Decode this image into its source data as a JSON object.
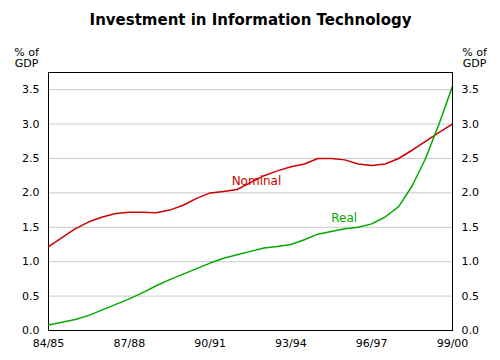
{
  "chart_data": {
    "type": "line",
    "title": "Investment in Information Technology",
    "ylabel": "% of\nGDP",
    "y2label": "% of\nGDP",
    "x": [
      0,
      0.5,
      1,
      1.5,
      2,
      2.5,
      3,
      3.5,
      4,
      4.5,
      5,
      5.5,
      6,
      6.5,
      7,
      7.5,
      8,
      8.5,
      9,
      9.5,
      10,
      10.5,
      11,
      11.5,
      12,
      12.5,
      13,
      13.5,
      14,
      14.5,
      15
    ],
    "series": [
      {
        "name": "Nominal",
        "color": "#cc0000",
        "values": [
          1.22,
          1.35,
          1.48,
          1.58,
          1.65,
          1.7,
          1.72,
          1.72,
          1.71,
          1.75,
          1.82,
          1.92,
          2.0,
          2.02,
          2.05,
          2.15,
          2.25,
          2.32,
          2.38,
          2.42,
          2.5,
          2.5,
          2.48,
          2.42,
          2.4,
          2.42,
          2.5,
          2.62,
          2.75,
          2.88,
          3.0
        ]
      },
      {
        "name": "Real",
        "color": "#00aa00",
        "values": [
          0.08,
          0.12,
          0.16,
          0.22,
          0.3,
          0.38,
          0.46,
          0.55,
          0.65,
          0.74,
          0.82,
          0.9,
          0.98,
          1.05,
          1.1,
          1.15,
          1.2,
          1.22,
          1.25,
          1.32,
          1.4,
          1.44,
          1.48,
          1.5,
          1.55,
          1.65,
          1.8,
          2.1,
          2.5,
          3.0,
          3.55
        ]
      }
    ],
    "xlim": [
      0,
      15
    ],
    "xticks": [
      {
        "value": 0,
        "label": "84/85"
      },
      {
        "value": 3,
        "label": "87/88"
      },
      {
        "value": 6,
        "label": "90/91"
      },
      {
        "value": 9,
        "label": "93/94"
      },
      {
        "value": 12,
        "label": "96/97"
      },
      {
        "value": 15,
        "label": "99/00"
      }
    ],
    "ylim": [
      0.0,
      3.75
    ],
    "yticks": [
      {
        "value": 0,
        "label": "0.0"
      },
      0.5,
      {
        "value": 1,
        "label": "1.0"
      },
      1.5,
      {
        "value": 2,
        "label": "2.0"
      },
      2.5,
      {
        "value": 3,
        "label": "3.0"
      },
      3.5
    ],
    "y2lim": [
      0.0,
      3.75
    ],
    "y2ticks": [
      {
        "value": 0,
        "label": "0.0"
      },
      0.5,
      {
        "value": 1,
        "label": "1.0"
      },
      1.5,
      {
        "value": 2,
        "label": "2.0"
      },
      2.5,
      {
        "value": 3,
        "label": "3.0"
      },
      3.5
    ],
    "grid": "y",
    "annotations": [
      {
        "text": "Nominal",
        "x": 6.8,
        "y": 2.12,
        "color": "#cc0000"
      },
      {
        "text": "Real",
        "x": 10.5,
        "y": 1.58,
        "color": "#00aa00"
      }
    ]
  }
}
